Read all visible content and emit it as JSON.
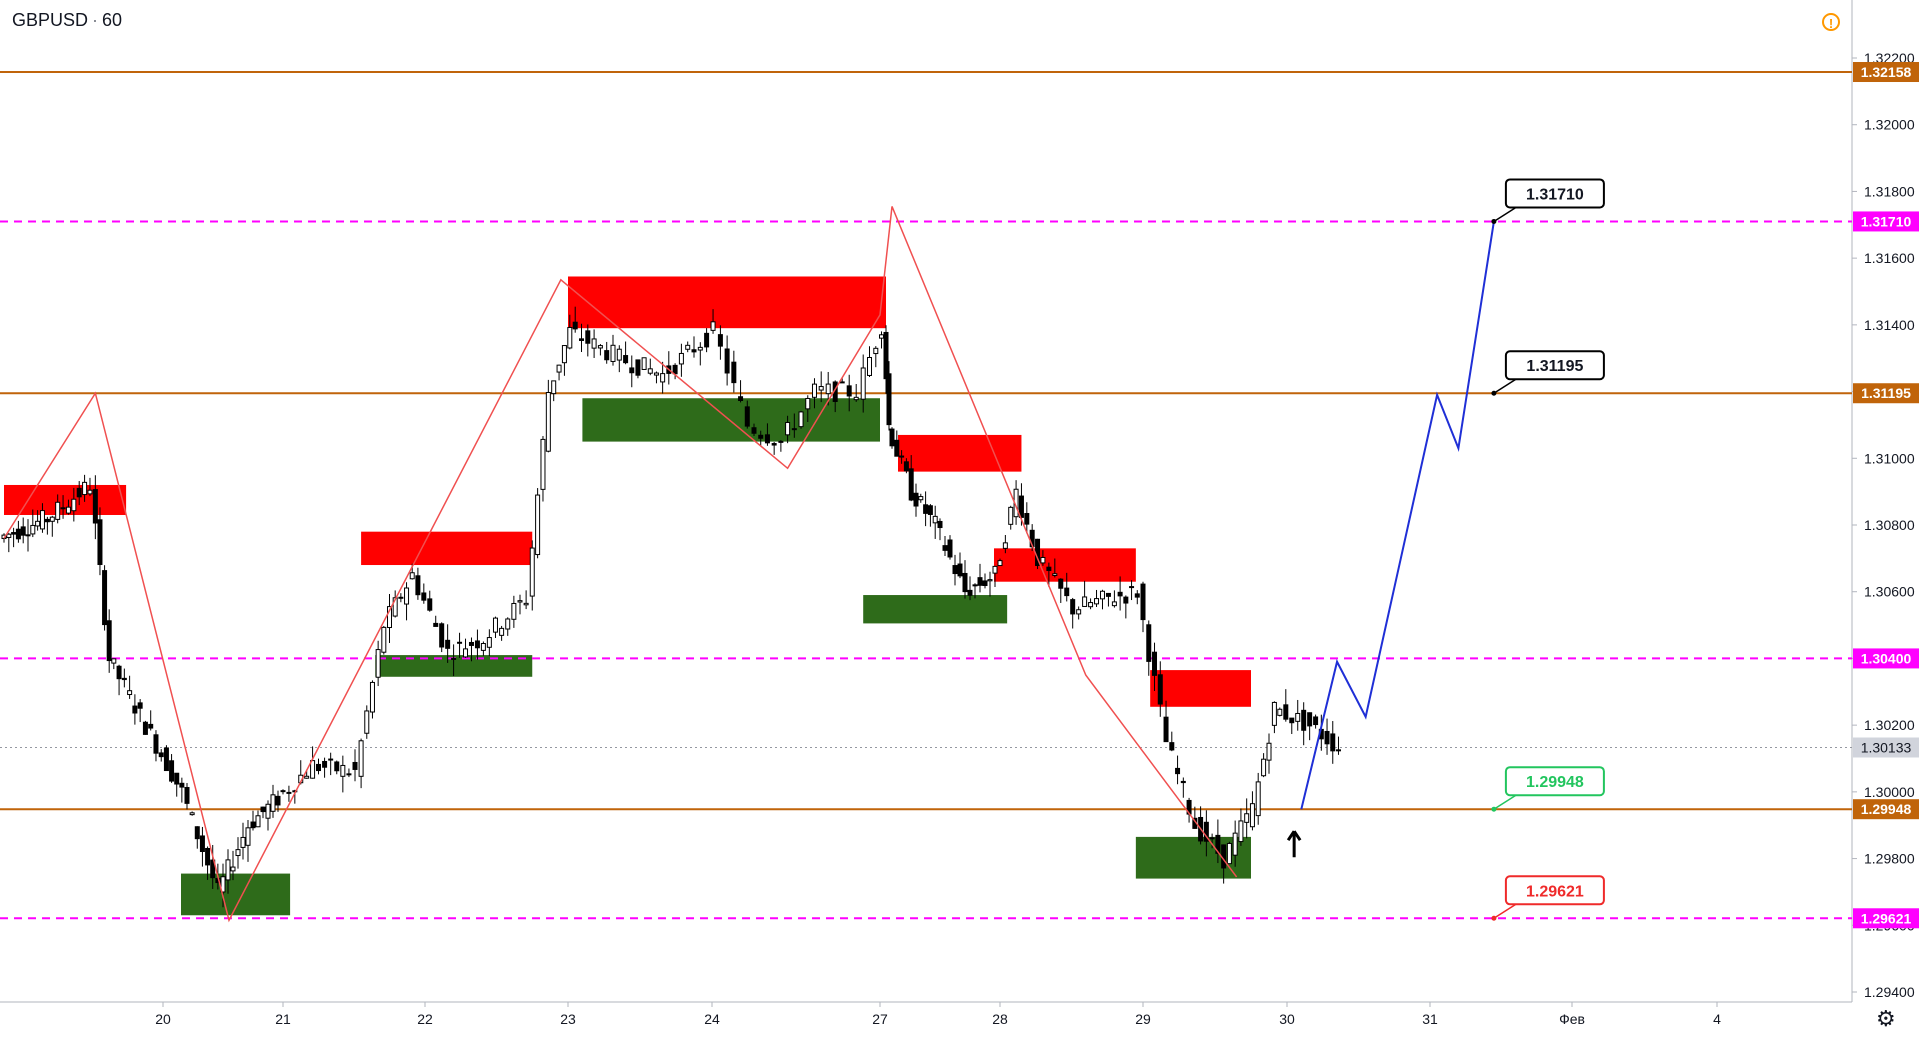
{
  "header": {
    "symbol": "GBPUSD",
    "interval": "60"
  },
  "icons": {
    "alert": "exclamation-circle-icon",
    "settings": "gear-icon"
  },
  "colors": {
    "up": "#ffffff",
    "down": "#000000",
    "wick": "#000000",
    "supply": "#ff0000",
    "demand": "#2e6b1a",
    "solid_level": "#c0640a",
    "dashed_level": "#ff00ff",
    "zigzag": "#f05050",
    "projection": "#1f2fd6",
    "label_target": "#000000",
    "label_green": "#22c55e",
    "label_red": "#ef2a2a"
  },
  "chart_data": {
    "type": "candlestick",
    "symbol": "GBPUSD",
    "interval": "60",
    "ylim": [
      1.2935,
      1.3225
    ],
    "y_ticks": [
      "1.32200",
      "1.32000",
      "1.31800",
      "1.31600",
      "1.31400",
      "1.31200",
      "1.31000",
      "1.30800",
      "1.30600",
      "1.30400",
      "1.30200",
      "1.30000",
      "1.29800",
      "1.29600",
      "1.29400"
    ],
    "x_ticks": [
      {
        "label": "20",
        "day": 3.0
      },
      {
        "label": "21",
        "day": 4.0
      },
      {
        "label": "22",
        "day": 5.0
      },
      {
        "label": "23",
        "day": 6.0
      },
      {
        "label": "24",
        "day": 7.0
      },
      {
        "label": "27",
        "day": 8.0
      },
      {
        "label": "28",
        "day": 9.0
      },
      {
        "label": "29",
        "day": 10.0
      },
      {
        "label": "30",
        "day": 11.0
      },
      {
        "label": "31",
        "day": 12.0
      },
      {
        "label": "Фев",
        "day": 13.0
      },
      {
        "label": "4",
        "day": 14.0
      }
    ],
    "levels": [
      {
        "price": 1.32158,
        "style": "solid",
        "label": "1.32158"
      },
      {
        "price": 1.3171,
        "style": "dashed",
        "label": "1.31710"
      },
      {
        "price": 1.31195,
        "style": "solid",
        "label": "1.31195"
      },
      {
        "price": 1.304,
        "style": "dashed",
        "label": "1.30400"
      },
      {
        "price": 1.29948,
        "style": "solid",
        "label": "1.29948"
      },
      {
        "price": 1.29621,
        "style": "dashed",
        "label": "1.29621"
      }
    ],
    "last_price": {
      "price": 1.30133,
      "label": "1.30133"
    },
    "zones": [
      {
        "kind": "supply",
        "d1": 1.7,
        "d2": 2.7,
        "p1": 1.3083,
        "p2": 1.3092
      },
      {
        "kind": "supply",
        "d1": 4.55,
        "d2": 5.75,
        "p1": 1.3068,
        "p2": 1.3078
      },
      {
        "kind": "supply",
        "d1": 6.0,
        "d2": 8.05,
        "p1": 1.3139,
        "p2": 1.31545
      },
      {
        "kind": "supply",
        "d1": 8.15,
        "d2": 9.15,
        "p1": 1.3096,
        "p2": 1.3107
      },
      {
        "kind": "supply",
        "d1": 8.95,
        "d2": 9.95,
        "p1": 1.3063,
        "p2": 1.3073
      },
      {
        "kind": "supply",
        "d1": 10.05,
        "d2": 10.75,
        "p1": 1.30255,
        "p2": 1.30365
      },
      {
        "kind": "demand",
        "d1": 3.15,
        "d2": 4.05,
        "p1": 1.2963,
        "p2": 1.29755
      },
      {
        "kind": "demand",
        "d1": 4.65,
        "d2": 5.75,
        "p1": 1.30345,
        "p2": 1.3041
      },
      {
        "kind": "demand",
        "d1": 6.1,
        "d2": 8.0,
        "p1": 1.3105,
        "p2": 1.3118
      },
      {
        "kind": "demand",
        "d1": 7.9,
        "d2": 9.05,
        "p1": 1.30505,
        "p2": 1.3059
      },
      {
        "kind": "demand",
        "d1": 9.95,
        "d2": 10.75,
        "p1": 1.2974,
        "p2": 1.29865
      }
    ],
    "zigzag": [
      {
        "day": 1.7,
        "price": 1.3076
      },
      {
        "day": 2.45,
        "price": 1.31195
      },
      {
        "day": 3.55,
        "price": 1.29615
      },
      {
        "day": 5.95,
        "price": 1.31535
      },
      {
        "day": 7.45,
        "price": 1.3097
      },
      {
        "day": 8.0,
        "price": 1.3143
      },
      {
        "day": 8.1,
        "price": 1.31755
      },
      {
        "day": 9.6,
        "price": 1.3035
      },
      {
        "day": 10.65,
        "price": 1.29745
      }
    ],
    "projection": [
      {
        "day": 11.1,
        "price": 1.29948
      },
      {
        "day": 11.35,
        "price": 1.3039
      },
      {
        "day": 11.55,
        "price": 1.30225
      },
      {
        "day": 12.05,
        "price": 1.3119
      },
      {
        "day": 12.2,
        "price": 1.3103
      },
      {
        "day": 12.45,
        "price": 1.3171
      }
    ],
    "callouts": [
      {
        "text": "1.31710",
        "day": 12.45,
        "price": 1.3171,
        "color": "target"
      },
      {
        "text": "1.31195",
        "day": 12.45,
        "price": 1.31195,
        "color": "target"
      },
      {
        "text": "1.29948",
        "day": 12.45,
        "price": 1.29948,
        "color": "green"
      },
      {
        "text": "1.29621",
        "day": 12.45,
        "price": 1.29621,
        "color": "red"
      }
    ],
    "arrow_up": {
      "day": 11.05,
      "price": 1.2984
    },
    "path": [
      {
        "day": 1.7,
        "price": 1.3076
      },
      {
        "day": 2.1,
        "price": 1.3082
      },
      {
        "day": 2.45,
        "price": 1.3092
      },
      {
        "day": 2.6,
        "price": 1.304
      },
      {
        "day": 2.9,
        "price": 1.302
      },
      {
        "day": 3.2,
        "price": 1.3
      },
      {
        "day": 3.5,
        "price": 1.297
      },
      {
        "day": 3.75,
        "price": 1.299
      },
      {
        "day": 4.0,
        "price": 1.2998
      },
      {
        "day": 4.25,
        "price": 1.3008
      },
      {
        "day": 4.55,
        "price": 1.3006
      },
      {
        "day": 4.75,
        "price": 1.305
      },
      {
        "day": 4.95,
        "price": 1.3065
      },
      {
        "day": 5.2,
        "price": 1.3042
      },
      {
        "day": 5.45,
        "price": 1.3046
      },
      {
        "day": 5.75,
        "price": 1.3058
      },
      {
        "day": 5.9,
        "price": 1.312
      },
      {
        "day": 6.05,
        "price": 1.3138
      },
      {
        "day": 6.4,
        "price": 1.313
      },
      {
        "day": 6.7,
        "price": 1.3125
      },
      {
        "day": 7.05,
        "price": 1.3138
      },
      {
        "day": 7.25,
        "price": 1.311
      },
      {
        "day": 7.45,
        "price": 1.3105
      },
      {
        "day": 7.65,
        "price": 1.312
      },
      {
        "day": 7.9,
        "price": 1.312
      },
      {
        "day": 8.05,
        "price": 1.314
      },
      {
        "day": 8.1,
        "price": 1.311
      },
      {
        "day": 8.3,
        "price": 1.309
      },
      {
        "day": 8.5,
        "price": 1.308
      },
      {
        "day": 8.75,
        "price": 1.306
      },
      {
        "day": 9.0,
        "price": 1.3065
      },
      {
        "day": 9.15,
        "price": 1.309
      },
      {
        "day": 9.3,
        "price": 1.307
      },
      {
        "day": 9.55,
        "price": 1.3055
      },
      {
        "day": 9.8,
        "price": 1.3058
      },
      {
        "day": 10.0,
        "price": 1.306
      },
      {
        "day": 10.2,
        "price": 1.3015
      },
      {
        "day": 10.4,
        "price": 1.299
      },
      {
        "day": 10.6,
        "price": 1.298
      },
      {
        "day": 10.8,
        "price": 1.2995
      },
      {
        "day": 10.95,
        "price": 1.3025
      },
      {
        "day": 11.2,
        "price": 1.302
      },
      {
        "day": 11.4,
        "price": 1.30133
      }
    ]
  }
}
